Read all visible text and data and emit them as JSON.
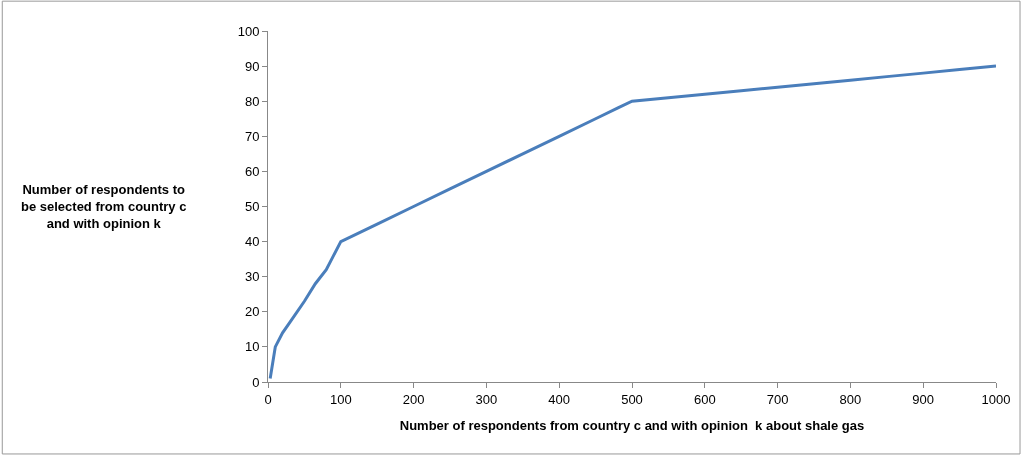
{
  "chart_data": {
    "type": "line",
    "xlabel": "Number of respondents from country c and with opinion  k about shale gas",
    "ylabel": "Number of respondents to\nbe selected from country c\nand with opinion k",
    "x": [
      3,
      10,
      20,
      30,
      50,
      65,
      80,
      90,
      100,
      150,
      200,
      250,
      300,
      350,
      400,
      450,
      480,
      500,
      550,
      600,
      650,
      700,
      750,
      800,
      850,
      900,
      950,
      1000
    ],
    "series": [
      {
        "color": "#4a7ebb",
        "values": [
          1,
          10,
          14,
          17,
          23,
          28,
          32,
          36,
          40,
          45,
          50,
          55,
          60,
          65,
          70,
          75,
          78,
          80,
          81,
          82,
          83,
          84,
          85,
          86,
          87,
          88,
          89,
          90
        ]
      }
    ],
    "xlim": [
      0,
      1000
    ],
    "xticks": [
      0,
      100,
      200,
      300,
      400,
      500,
      600,
      700,
      800,
      900,
      1000
    ],
    "ylim": [
      0,
      100
    ],
    "yticks": [
      0,
      10,
      20,
      30,
      40,
      50,
      60,
      70,
      80,
      90,
      100
    ],
    "grid": false,
    "marker": "none",
    "line_style": "solid"
  }
}
